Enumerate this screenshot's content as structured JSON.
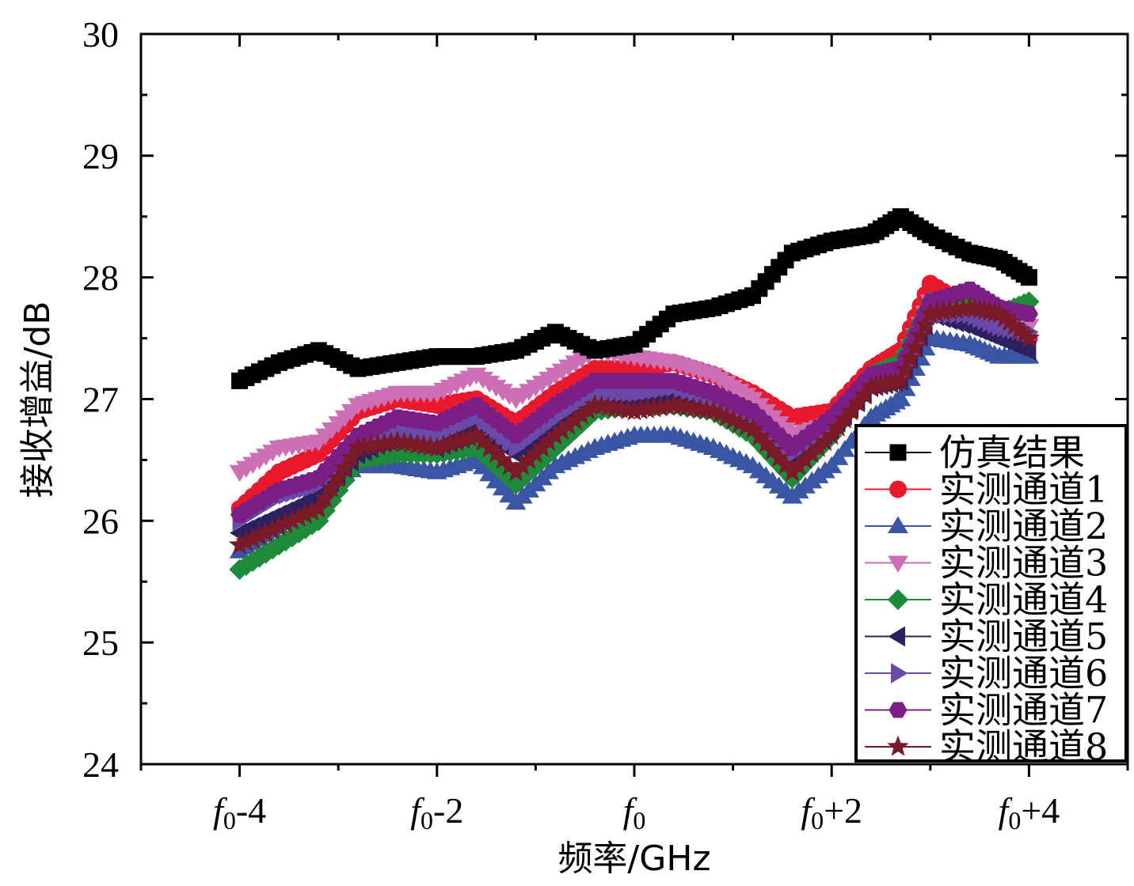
{
  "chart_data": {
    "type": "line",
    "xlabel": "频率/GHz",
    "ylabel": "接收增益/dB",
    "xlim": [
      -5,
      5
    ],
    "ylim": [
      24,
      30
    ],
    "yticks": [
      24,
      25,
      26,
      27,
      28,
      29,
      30
    ],
    "xticks": [
      {
        "x": -4,
        "base": "f",
        "sub": "0",
        "suffix": "-4"
      },
      {
        "x": -2,
        "base": "f",
        "sub": "0",
        "suffix": "-2"
      },
      {
        "x": 0,
        "base": "f",
        "sub": "0",
        "suffix": ""
      },
      {
        "x": 2,
        "base": "f",
        "sub": "0",
        "suffix": "+2"
      },
      {
        "x": 4,
        "base": "f",
        "sub": "0",
        "suffix": "+4"
      }
    ],
    "legend_position": "bottom-right",
    "series": [
      {
        "name": "仿真结果",
        "color": "#000000",
        "marker": "square",
        "points": [
          [
            -4,
            27.15
          ],
          [
            -3.6,
            27.3
          ],
          [
            -3.2,
            27.4
          ],
          [
            -2.8,
            27.25
          ],
          [
            -2.4,
            27.3
          ],
          [
            -2,
            27.35
          ],
          [
            -1.6,
            27.35
          ],
          [
            -1.2,
            27.4
          ],
          [
            -0.8,
            27.55
          ],
          [
            -0.4,
            27.4
          ],
          [
            0,
            27.45
          ],
          [
            0.4,
            27.7
          ],
          [
            0.8,
            27.75
          ],
          [
            1.2,
            27.85
          ],
          [
            1.6,
            28.2
          ],
          [
            2,
            28.3
          ],
          [
            2.4,
            28.35
          ],
          [
            2.7,
            28.5
          ],
          [
            3,
            28.35
          ],
          [
            3.4,
            28.2
          ],
          [
            3.7,
            28.15
          ],
          [
            4,
            28.0
          ]
        ]
      },
      {
        "name": "实测通道1",
        "color": "#e8192c",
        "marker": "circle",
        "points": [
          [
            -4,
            26.1
          ],
          [
            -3.6,
            26.4
          ],
          [
            -3.2,
            26.55
          ],
          [
            -2.8,
            26.9
          ],
          [
            -2.4,
            27.0
          ],
          [
            -2,
            26.95
          ],
          [
            -1.6,
            27.0
          ],
          [
            -1.2,
            26.8
          ],
          [
            -0.8,
            27.05
          ],
          [
            -0.4,
            27.25
          ],
          [
            0,
            27.25
          ],
          [
            0.4,
            27.3
          ],
          [
            0.8,
            27.2
          ],
          [
            1.2,
            27.05
          ],
          [
            1.6,
            26.85
          ],
          [
            2,
            26.9
          ],
          [
            2.4,
            27.25
          ],
          [
            2.7,
            27.4
          ],
          [
            3,
            27.95
          ],
          [
            3.4,
            27.75
          ],
          [
            3.7,
            27.75
          ],
          [
            4,
            27.5
          ]
        ]
      },
      {
        "name": "实测通道2",
        "color": "#3a55a4",
        "marker": "triangle-up",
        "points": [
          [
            -4,
            25.75
          ],
          [
            -3.6,
            25.95
          ],
          [
            -3.2,
            26.25
          ],
          [
            -2.8,
            26.45
          ],
          [
            -2.4,
            26.45
          ],
          [
            -2,
            26.4
          ],
          [
            -1.6,
            26.5
          ],
          [
            -1.2,
            26.15
          ],
          [
            -0.8,
            26.45
          ],
          [
            -0.4,
            26.6
          ],
          [
            0,
            26.7
          ],
          [
            0.4,
            26.7
          ],
          [
            0.8,
            26.6
          ],
          [
            1.2,
            26.45
          ],
          [
            1.6,
            26.2
          ],
          [
            2,
            26.45
          ],
          [
            2.4,
            26.85
          ],
          [
            2.7,
            27.0
          ],
          [
            3,
            27.5
          ],
          [
            3.4,
            27.45
          ],
          [
            3.7,
            27.35
          ],
          [
            4,
            27.35
          ]
        ]
      },
      {
        "name": "实测通道3",
        "color": "#cc6fb5",
        "marker": "triangle-down",
        "points": [
          [
            -4,
            26.4
          ],
          [
            -3.6,
            26.6
          ],
          [
            -3.2,
            26.65
          ],
          [
            -2.8,
            26.95
          ],
          [
            -2.4,
            27.05
          ],
          [
            -2,
            27.05
          ],
          [
            -1.6,
            27.2
          ],
          [
            -1.2,
            27.0
          ],
          [
            -0.8,
            27.2
          ],
          [
            -0.4,
            27.4
          ],
          [
            0,
            27.35
          ],
          [
            0.4,
            27.3
          ],
          [
            0.8,
            27.2
          ],
          [
            1.2,
            27.0
          ],
          [
            1.6,
            26.7
          ],
          [
            2,
            26.8
          ],
          [
            2.4,
            27.15
          ],
          [
            2.7,
            27.25
          ],
          [
            3,
            27.8
          ],
          [
            3.4,
            27.7
          ],
          [
            3.7,
            27.65
          ],
          [
            4,
            27.6
          ]
        ]
      },
      {
        "name": "实测通道4",
        "color": "#1e8a3c",
        "marker": "diamond",
        "points": [
          [
            -4,
            25.6
          ],
          [
            -3.6,
            25.8
          ],
          [
            -3.2,
            26.0
          ],
          [
            -2.8,
            26.5
          ],
          [
            -2.4,
            26.55
          ],
          [
            -2,
            26.55
          ],
          [
            -1.6,
            26.6
          ],
          [
            -1.2,
            26.3
          ],
          [
            -0.8,
            26.6
          ],
          [
            -0.4,
            26.9
          ],
          [
            0,
            26.95
          ],
          [
            0.4,
            26.95
          ],
          [
            0.8,
            26.9
          ],
          [
            1.2,
            26.7
          ],
          [
            1.6,
            26.35
          ],
          [
            2,
            26.7
          ],
          [
            2.4,
            27.2
          ],
          [
            2.7,
            27.3
          ],
          [
            3,
            27.8
          ],
          [
            3.4,
            27.75
          ],
          [
            3.7,
            27.7
          ],
          [
            4,
            27.8
          ]
        ]
      },
      {
        "name": "实测通道5",
        "color": "#2c2060",
        "marker": "triangle-left",
        "points": [
          [
            -4,
            25.9
          ],
          [
            -3.6,
            26.05
          ],
          [
            -3.2,
            26.2
          ],
          [
            -2.8,
            26.55
          ],
          [
            -2.4,
            26.7
          ],
          [
            -2,
            26.6
          ],
          [
            -1.6,
            26.75
          ],
          [
            -1.2,
            26.55
          ],
          [
            -0.8,
            26.8
          ],
          [
            -0.4,
            27.0
          ],
          [
            0,
            26.95
          ],
          [
            0.4,
            27.05
          ],
          [
            0.8,
            26.95
          ],
          [
            1.2,
            26.8
          ],
          [
            1.6,
            26.5
          ],
          [
            2,
            26.75
          ],
          [
            2.4,
            27.1
          ],
          [
            2.7,
            27.15
          ],
          [
            3,
            27.7
          ],
          [
            3.4,
            27.6
          ],
          [
            3.7,
            27.5
          ],
          [
            4,
            27.4
          ]
        ]
      },
      {
        "name": "实测通道6",
        "color": "#6a4aa8",
        "marker": "triangle-right",
        "points": [
          [
            -4,
            26.0
          ],
          [
            -3.6,
            26.2
          ],
          [
            -3.2,
            26.3
          ],
          [
            -2.8,
            26.65
          ],
          [
            -2.4,
            26.75
          ],
          [
            -2,
            26.7
          ],
          [
            -1.6,
            26.85
          ],
          [
            -1.2,
            26.6
          ],
          [
            -0.8,
            26.85
          ],
          [
            -0.4,
            27.05
          ],
          [
            0,
            27.05
          ],
          [
            0.4,
            27.1
          ],
          [
            0.8,
            27.0
          ],
          [
            1.2,
            26.85
          ],
          [
            1.6,
            26.55
          ],
          [
            2,
            26.8
          ],
          [
            2.4,
            27.15
          ],
          [
            2.7,
            27.2
          ],
          [
            3,
            27.7
          ],
          [
            3.4,
            27.7
          ],
          [
            3.7,
            27.6
          ],
          [
            4,
            27.55
          ]
        ]
      },
      {
        "name": "实测通道7",
        "color": "#7b1f86",
        "marker": "hexagon",
        "points": [
          [
            -4,
            26.05
          ],
          [
            -3.6,
            26.25
          ],
          [
            -3.2,
            26.35
          ],
          [
            -2.8,
            26.7
          ],
          [
            -2.4,
            26.85
          ],
          [
            -2,
            26.8
          ],
          [
            -1.6,
            26.95
          ],
          [
            -1.2,
            26.7
          ],
          [
            -0.8,
            26.95
          ],
          [
            -0.4,
            27.15
          ],
          [
            0,
            27.15
          ],
          [
            0.4,
            27.15
          ],
          [
            0.8,
            27.05
          ],
          [
            1.2,
            26.9
          ],
          [
            1.6,
            26.6
          ],
          [
            2,
            26.85
          ],
          [
            2.4,
            27.2
          ],
          [
            2.7,
            27.25
          ],
          [
            3,
            27.8
          ],
          [
            3.4,
            27.9
          ],
          [
            3.7,
            27.75
          ],
          [
            4,
            27.7
          ]
        ]
      },
      {
        "name": "实测通道8",
        "color": "#7a1a28",
        "marker": "star",
        "points": [
          [
            -4,
            25.8
          ],
          [
            -3.6,
            25.95
          ],
          [
            -3.2,
            26.1
          ],
          [
            -2.8,
            26.6
          ],
          [
            -2.4,
            26.65
          ],
          [
            -2,
            26.6
          ],
          [
            -1.6,
            26.7
          ],
          [
            -1.2,
            26.4
          ],
          [
            -0.8,
            26.7
          ],
          [
            -0.4,
            26.95
          ],
          [
            0,
            26.9
          ],
          [
            0.4,
            26.95
          ],
          [
            0.8,
            26.9
          ],
          [
            1.2,
            26.75
          ],
          [
            1.6,
            26.4
          ],
          [
            2,
            26.7
          ],
          [
            2.4,
            27.1
          ],
          [
            2.7,
            27.15
          ],
          [
            3,
            27.7
          ],
          [
            3.4,
            27.75
          ],
          [
            3.7,
            27.7
          ],
          [
            4,
            27.5
          ]
        ]
      }
    ]
  }
}
